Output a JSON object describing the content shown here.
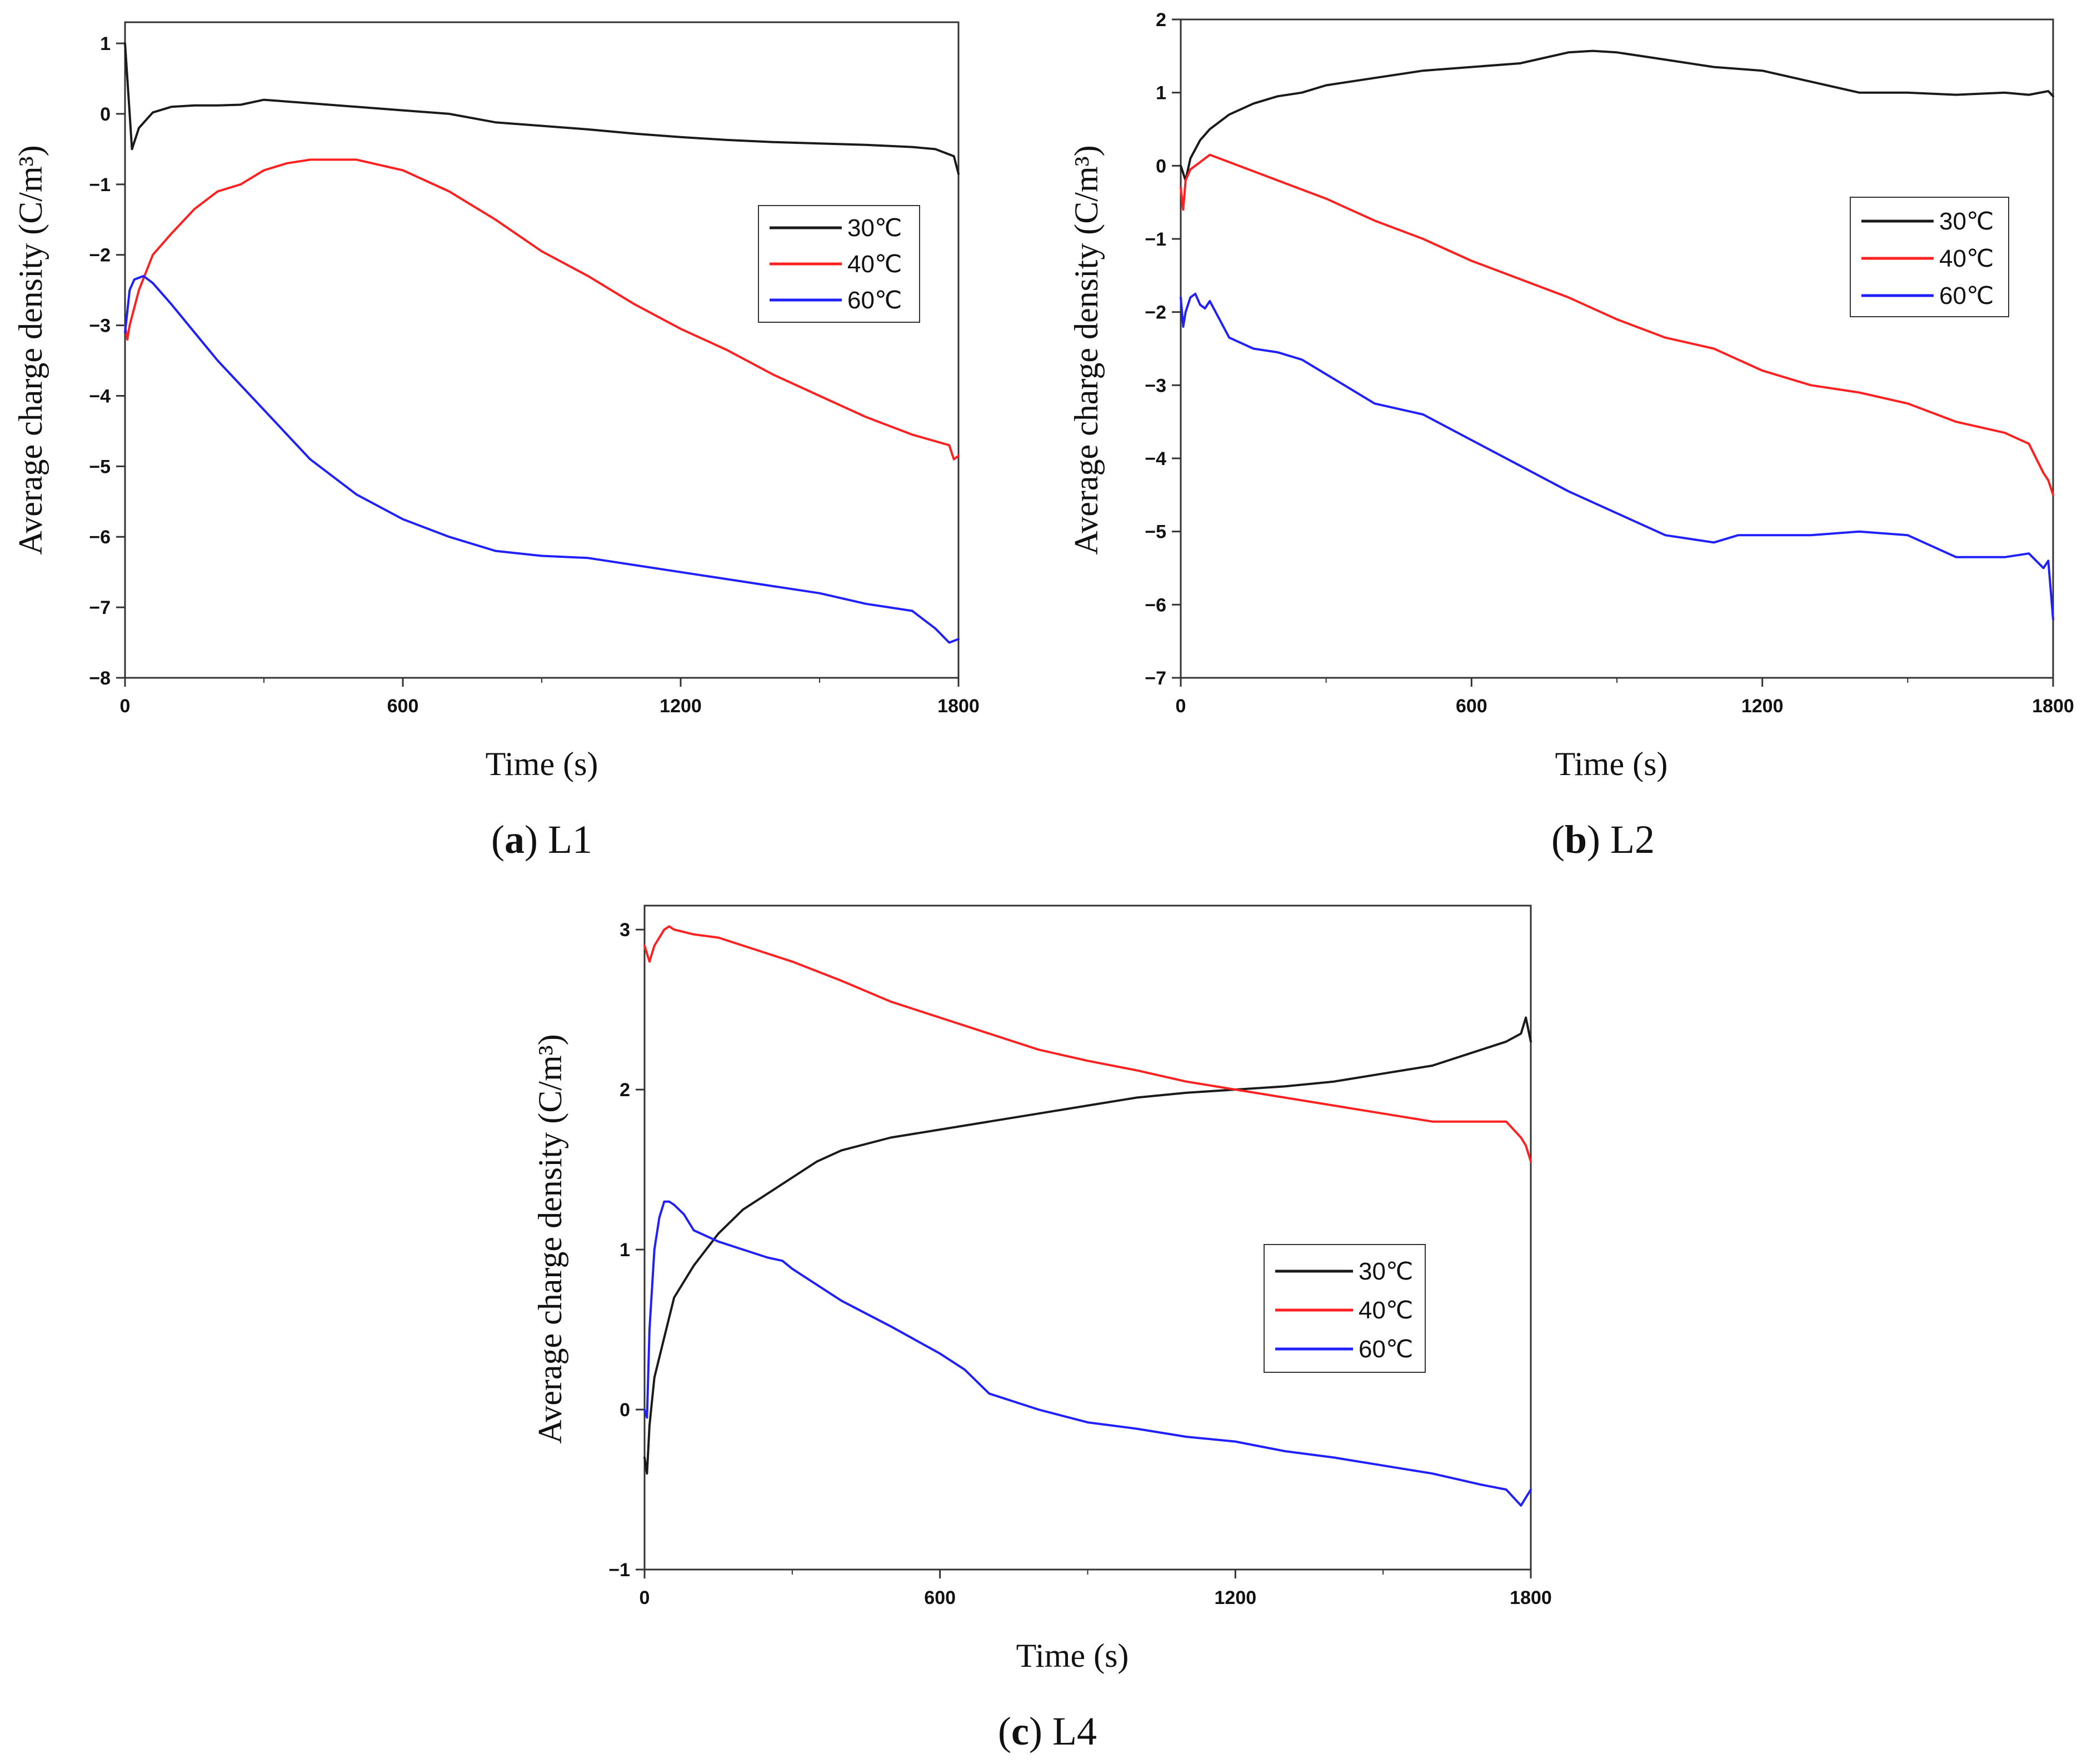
{
  "figure": {
    "panels": [
      {
        "letter": "a",
        "name": "L1"
      },
      {
        "letter": "b",
        "name": "L2"
      },
      {
        "letter": "c",
        "name": "L4"
      }
    ]
  },
  "chart_data": [
    {
      "type": "line",
      "panel": "a",
      "title": "",
      "caption_letter": "a",
      "caption_text": "L1",
      "xlabel": "Time (s)",
      "ylabel": "Average charge density (C/m³)",
      "xlim": [
        0,
        1800
      ],
      "ylim": [
        -8,
        1.3
      ],
      "xticks": [
        0,
        600,
        1200,
        1800
      ],
      "yticks": [
        1,
        0,
        -1,
        -2,
        -3,
        -4,
        -5,
        -6,
        -7,
        -8
      ],
      "grid": false,
      "legend_position": "upper-right",
      "series": [
        {
          "name": "30℃",
          "color": "#1a1a1a",
          "x": [
            0,
            5,
            15,
            30,
            60,
            100,
            150,
            200,
            250,
            300,
            400,
            500,
            600,
            700,
            800,
            900,
            1000,
            1100,
            1200,
            1300,
            1400,
            1500,
            1600,
            1700,
            1750,
            1790,
            1800
          ],
          "y": [
            1.0,
            0.5,
            -0.5,
            -0.2,
            0.02,
            0.1,
            0.12,
            0.12,
            0.13,
            0.2,
            0.15,
            0.1,
            0.05,
            0.0,
            -0.12,
            -0.17,
            -0.22,
            -0.28,
            -0.33,
            -0.37,
            -0.4,
            -0.42,
            -0.44,
            -0.47,
            -0.5,
            -0.6,
            -0.85
          ]
        },
        {
          "name": "40℃",
          "color": "#ff2020",
          "x": [
            0,
            5,
            10,
            30,
            60,
            100,
            150,
            200,
            250,
            300,
            350,
            400,
            500,
            600,
            700,
            800,
            900,
            1000,
            1100,
            1200,
            1300,
            1400,
            1500,
            1600,
            1700,
            1780,
            1790,
            1800
          ],
          "y": [
            -3.0,
            -3.2,
            -3.0,
            -2.5,
            -2.0,
            -1.7,
            -1.35,
            -1.1,
            -1.0,
            -0.8,
            -0.7,
            -0.65,
            -0.65,
            -0.8,
            -1.1,
            -1.5,
            -1.95,
            -2.3,
            -2.7,
            -3.05,
            -3.35,
            -3.7,
            -4.0,
            -4.3,
            -4.55,
            -4.7,
            -4.9,
            -4.85
          ]
        },
        {
          "name": "60℃",
          "color": "#2020ff",
          "x": [
            0,
            5,
            10,
            20,
            40,
            60,
            100,
            150,
            200,
            250,
            300,
            400,
            500,
            600,
            700,
            800,
            900,
            1000,
            1100,
            1200,
            1300,
            1400,
            1500,
            1600,
            1650,
            1700,
            1750,
            1780,
            1800
          ],
          "y": [
            -3.1,
            -2.8,
            -2.5,
            -2.35,
            -2.3,
            -2.4,
            -2.7,
            -3.1,
            -3.5,
            -3.85,
            -4.2,
            -4.9,
            -5.4,
            -5.75,
            -6.0,
            -6.2,
            -6.27,
            -6.3,
            -6.4,
            -6.5,
            -6.6,
            -6.7,
            -6.8,
            -6.95,
            -7.0,
            -7.05,
            -7.3,
            -7.5,
            -7.45
          ]
        }
      ]
    },
    {
      "type": "line",
      "panel": "b",
      "title": "",
      "caption_letter": "b",
      "caption_text": "L2",
      "xlabel": "Time (s)",
      "ylabel": "Average charge density (C/m³)",
      "xlim": [
        0,
        1800
      ],
      "ylim": [
        -7,
        2
      ],
      "xticks": [
        0,
        600,
        1200,
        1800
      ],
      "yticks": [
        2,
        1,
        0,
        -1,
        -2,
        -3,
        -4,
        -5,
        -6,
        -7
      ],
      "grid": false,
      "legend_position": "upper-right",
      "series": [
        {
          "name": "30℃",
          "color": "#1a1a1a",
          "x": [
            0,
            10,
            20,
            40,
            60,
            100,
            150,
            200,
            250,
            300,
            400,
            500,
            600,
            700,
            800,
            850,
            900,
            1000,
            1100,
            1200,
            1300,
            1400,
            1500,
            1600,
            1700,
            1750,
            1790,
            1800
          ],
          "y": [
            0.0,
            -0.2,
            0.1,
            0.35,
            0.5,
            0.7,
            0.85,
            0.95,
            1.0,
            1.1,
            1.2,
            1.3,
            1.35,
            1.4,
            1.55,
            1.57,
            1.55,
            1.45,
            1.35,
            1.3,
            1.15,
            1.0,
            1.0,
            0.97,
            1.0,
            0.97,
            1.02,
            0.95
          ]
        },
        {
          "name": "40℃",
          "color": "#ff2020",
          "x": [
            0,
            5,
            10,
            20,
            40,
            60,
            100,
            200,
            300,
            400,
            500,
            600,
            700,
            800,
            900,
            1000,
            1100,
            1200,
            1300,
            1400,
            1500,
            1600,
            1700,
            1750,
            1780,
            1790,
            1800
          ],
          "y": [
            -0.3,
            -0.6,
            -0.2,
            -0.05,
            0.05,
            0.15,
            0.05,
            -0.2,
            -0.45,
            -0.75,
            -1.0,
            -1.3,
            -1.55,
            -1.8,
            -2.1,
            -2.35,
            -2.5,
            -2.8,
            -3.0,
            -3.1,
            -3.25,
            -3.5,
            -3.65,
            -3.8,
            -4.2,
            -4.3,
            -4.5
          ]
        },
        {
          "name": "60℃",
          "color": "#2020ff",
          "x": [
            0,
            5,
            10,
            20,
            30,
            40,
            50,
            60,
            80,
            100,
            150,
            200,
            250,
            300,
            350,
            400,
            500,
            600,
            700,
            800,
            900,
            1000,
            1100,
            1150,
            1200,
            1300,
            1400,
            1500,
            1600,
            1700,
            1750,
            1780,
            1790,
            1800
          ],
          "y": [
            -1.8,
            -2.2,
            -2.0,
            -1.8,
            -1.75,
            -1.9,
            -1.95,
            -1.85,
            -2.1,
            -2.35,
            -2.5,
            -2.55,
            -2.65,
            -2.85,
            -3.05,
            -3.25,
            -3.4,
            -3.75,
            -4.1,
            -4.45,
            -4.75,
            -5.05,
            -5.15,
            -5.05,
            -5.05,
            -5.05,
            -5.0,
            -5.05,
            -5.35,
            -5.35,
            -5.3,
            -5.5,
            -5.4,
            -6.2
          ]
        }
      ]
    },
    {
      "type": "line",
      "panel": "c",
      "title": "",
      "caption_letter": "c",
      "caption_text": "L4",
      "xlabel": "Time (s)",
      "ylabel": "Average charge density (C/m³)",
      "xlim": [
        0,
        1800
      ],
      "ylim": [
        -1,
        3.15
      ],
      "xticks": [
        0,
        600,
        1200,
        1800
      ],
      "yticks": [
        3,
        2,
        1,
        0,
        -1
      ],
      "grid": false,
      "legend_position": "middle-right",
      "series": [
        {
          "name": "30℃",
          "color": "#1a1a1a",
          "x": [
            0,
            5,
            10,
            20,
            40,
            60,
            100,
            150,
            200,
            250,
            300,
            350,
            400,
            500,
            600,
            700,
            800,
            900,
            1000,
            1100,
            1200,
            1300,
            1400,
            1500,
            1600,
            1700,
            1750,
            1780,
            1790,
            1800
          ],
          "y": [
            -0.3,
            -0.4,
            -0.1,
            0.2,
            0.45,
            0.7,
            0.9,
            1.1,
            1.25,
            1.35,
            1.45,
            1.55,
            1.62,
            1.7,
            1.75,
            1.8,
            1.85,
            1.9,
            1.95,
            1.98,
            2.0,
            2.02,
            2.05,
            2.1,
            2.15,
            2.25,
            2.3,
            2.35,
            2.45,
            2.3
          ]
        },
        {
          "name": "40℃",
          "color": "#ff2020",
          "x": [
            0,
            5,
            10,
            20,
            40,
            50,
            60,
            100,
            150,
            200,
            300,
            400,
            500,
            600,
            700,
            800,
            900,
            1000,
            1100,
            1200,
            1300,
            1400,
            1500,
            1600,
            1700,
            1750,
            1780,
            1790,
            1800
          ],
          "y": [
            2.9,
            2.85,
            2.8,
            2.9,
            3.0,
            3.02,
            3.0,
            2.97,
            2.95,
            2.9,
            2.8,
            2.68,
            2.55,
            2.45,
            2.35,
            2.25,
            2.18,
            2.12,
            2.05,
            2.0,
            1.95,
            1.9,
            1.85,
            1.8,
            1.8,
            1.8,
            1.7,
            1.65,
            1.55
          ]
        },
        {
          "name": "60℃",
          "color": "#2020ff",
          "x": [
            0,
            5,
            10,
            20,
            30,
            40,
            50,
            60,
            80,
            100,
            150,
            200,
            250,
            280,
            300,
            350,
            400,
            500,
            600,
            650,
            700,
            800,
            900,
            1000,
            1100,
            1200,
            1300,
            1400,
            1500,
            1600,
            1700,
            1750,
            1780,
            1790,
            1800
          ],
          "y": [
            0.0,
            -0.05,
            0.5,
            1.0,
            1.2,
            1.3,
            1.3,
            1.28,
            1.22,
            1.12,
            1.05,
            1.0,
            0.95,
            0.93,
            0.88,
            0.78,
            0.68,
            0.52,
            0.35,
            0.25,
            0.1,
            0.0,
            -0.08,
            -0.12,
            -0.17,
            -0.2,
            -0.26,
            -0.3,
            -0.35,
            -0.4,
            -0.47,
            -0.5,
            -0.6,
            -0.55,
            -0.5
          ]
        }
      ]
    }
  ]
}
